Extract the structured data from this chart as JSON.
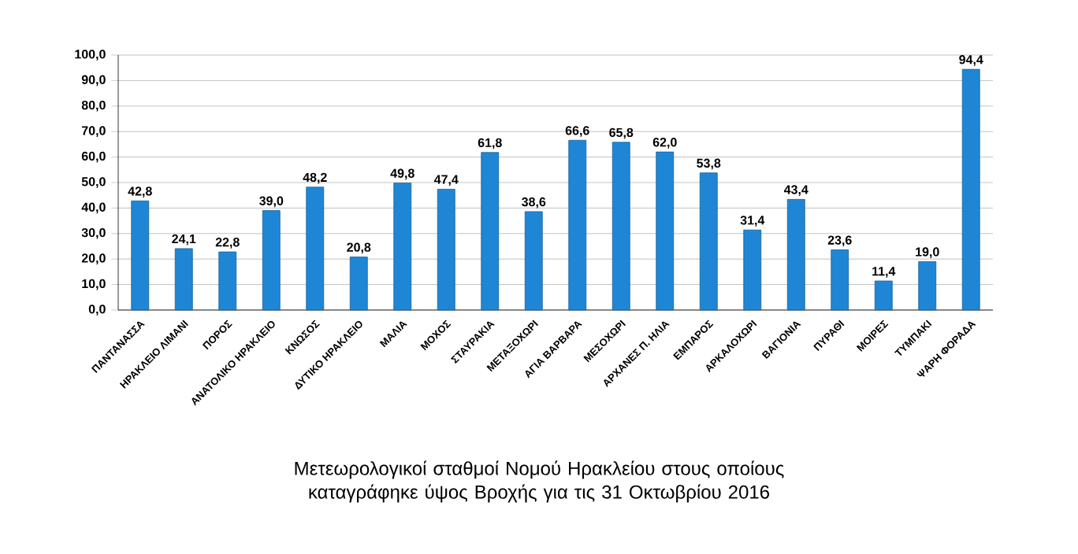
{
  "chart_data": {
    "type": "bar",
    "title": "Μετεωρολογικοί σταθμοί Νομού Ηρακλείου στους οποίους καταγράφηκε ύψος Βροχής για τις 31 Οκτωβρίου 2016",
    "categories": [
      "ΠΑΝΤΑΝΑΣΣΑ",
      "ΗΡΑΚΛΕΙΟ ΛΙΜΑΝΙ",
      "ΠΟΡΟΣ",
      "ΑΝΑΤΟΛΙΚΟ ΗΡΑΚΛΕΙΟ",
      "ΚΝΩΣΟΣ",
      "ΔΥΤΙΚΟ ΗΡΑΚΛΕΙΟ",
      "ΜΑΛΙΑ",
      "ΜΟΧΟΣ",
      "ΣΤΑΥΡΑΚΙΑ",
      "ΜΕΤΑΞΟΧΩΡΙ",
      "ΑΓΙΑ ΒΑΡΒΑΡΑ",
      "ΜΕΣΟΧΩΡΙ",
      "ΑΡΧΑΝΕΣ Π. ΗΛΙΑ",
      "ΕΜΠΑΡΟΣ",
      "ΑΡΚΑΛΟΧΩΡΙ",
      "ΒΑΓΙΟΝΙΑ",
      "ΠΥΡΑΘΙ",
      "ΜΟΙΡΕΣ",
      "ΤΥΜΠΑΚΙ",
      "ΨΑΡΗ ΦΟΡΑΔΑ"
    ],
    "values": [
      42.8,
      24.1,
      22.8,
      39.0,
      48.2,
      20.8,
      49.8,
      47.4,
      61.8,
      38.6,
      66.6,
      65.8,
      62.0,
      53.8,
      31.4,
      43.4,
      23.6,
      11.4,
      19.0,
      94.4
    ],
    "value_labels": [
      "42,8",
      "24,1",
      "22,8",
      "39,0",
      "48,2",
      "20,8",
      "49,8",
      "47,4",
      "61,8",
      "38,6",
      "66,6",
      "65,8",
      "62,0",
      "53,8",
      "31,4",
      "43,4",
      "23,6",
      "11,4",
      "19,0",
      "94,4"
    ],
    "color": "#1f86d6",
    "ylim": [
      0,
      100
    ],
    "yticks": [
      {
        "value": 0,
        "label": "0,0"
      },
      {
        "value": 10,
        "label": "10,0"
      },
      {
        "value": 20,
        "label": "20,0"
      },
      {
        "value": 30,
        "label": "30,0"
      },
      {
        "value": 40,
        "label": "40,0"
      },
      {
        "value": 50,
        "label": "50,0"
      },
      {
        "value": 60,
        "label": "60,0"
      },
      {
        "value": 70,
        "label": "70,0"
      },
      {
        "value": 80,
        "label": "80,0"
      },
      {
        "value": 90,
        "label": "90,0"
      },
      {
        "value": 100,
        "label": "100,0"
      }
    ],
    "grid": "y"
  }
}
